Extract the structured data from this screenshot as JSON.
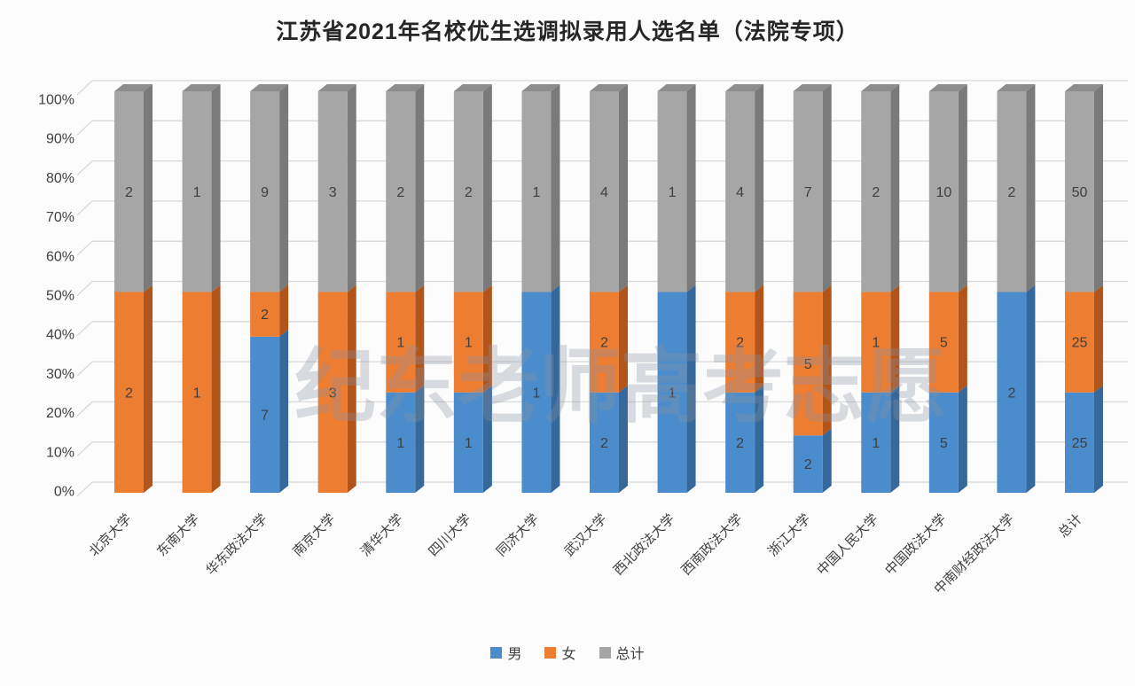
{
  "title": "江苏省2021年名校优生选调拟录用人选名单（法院专项）",
  "watermark": "纪东老师高考志愿",
  "chart_data": {
    "type": "bar",
    "subtype": "stacked-100-percent-3d-column",
    "title": "江苏省2021年名校优生选调拟录用人选名单（法院专项）",
    "categories": [
      "北京大学",
      "东南大学",
      "华东政法大学",
      "南京大学",
      "清华大学",
      "四川大学",
      "同济大学",
      "武汉大学",
      "西北政法大学",
      "西南政法大学",
      "浙江大学",
      "中国人民大学",
      "中国政法大学",
      "中南财经政法大学",
      "总计"
    ],
    "series": [
      {
        "name": "男",
        "color": "#4A8CCC",
        "side_color": "#35689B",
        "top_color": "#3D7CB1",
        "values": [
          0,
          0,
          7,
          0,
          1,
          1,
          1,
          2,
          1,
          2,
          2,
          1,
          5,
          2,
          25
        ]
      },
      {
        "name": "女",
        "color": "#ED7D31",
        "side_color": "#B2551B",
        "top_color": "#C96A24",
        "values": [
          2,
          1,
          2,
          3,
          1,
          1,
          0,
          2,
          0,
          2,
          5,
          1,
          5,
          0,
          25
        ]
      },
      {
        "name": "总计",
        "color": "#A6A6A6",
        "side_color": "#7A7A7A",
        "top_color": "#8D8D8D",
        "values": [
          2,
          1,
          9,
          3,
          2,
          2,
          1,
          4,
          1,
          4,
          7,
          2,
          10,
          2,
          50
        ]
      }
    ],
    "y_axis": {
      "min": 0,
      "max": 100,
      "step": 10,
      "format": "percent",
      "ticks": [
        "0%",
        "10%",
        "20%",
        "30%",
        "40%",
        "50%",
        "60%",
        "70%",
        "80%",
        "90%",
        "100%"
      ]
    },
    "legend": {
      "position": "bottom",
      "items": [
        "男",
        "女",
        "总计"
      ]
    },
    "grid": true,
    "data_labels": "shown inside segments, zero values hidden",
    "gridline_color": "#d9d9d9",
    "label_color": "#3f3f3f",
    "watermark_color": "#8a93a3"
  }
}
